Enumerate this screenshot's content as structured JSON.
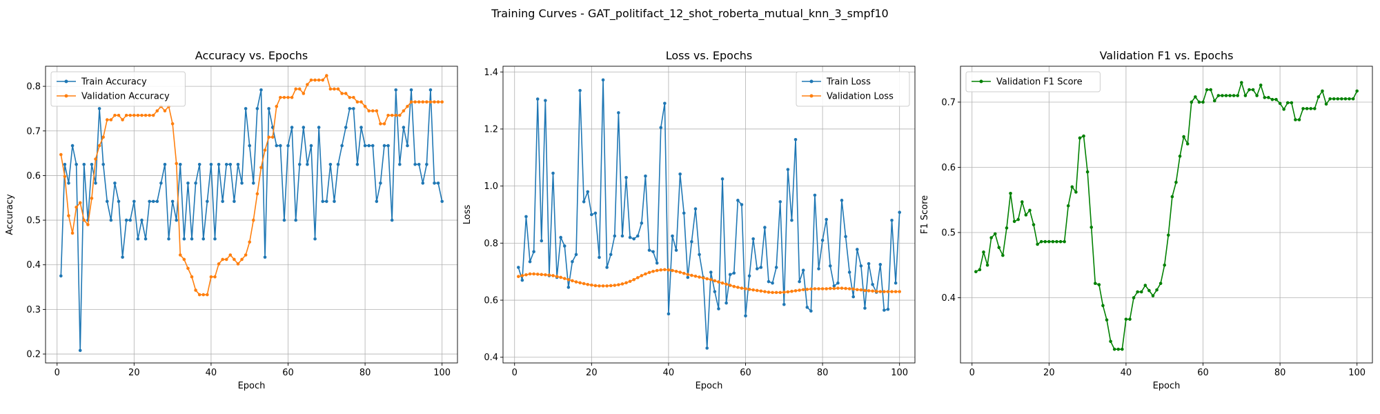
{
  "figure": {
    "title": "Training Curves - GAT_politifact_12_shot_roberta_mutual_knn_3_smpf10"
  },
  "chart_data": [
    {
      "type": "line",
      "title": "Accuracy vs. Epochs",
      "xlabel": "Epoch",
      "ylabel": "Accuracy",
      "xlim": [
        -3,
        104
      ],
      "ylim": [
        0.18,
        0.845
      ],
      "xticks": [
        0,
        20,
        40,
        60,
        80,
        100
      ],
      "yticks": [
        0.2,
        0.3,
        0.4,
        0.5,
        0.6,
        0.7,
        0.8
      ],
      "ytick_labels": [
        "0.2",
        "0.3",
        "0.4",
        "0.5",
        "0.6",
        "0.7",
        "0.8"
      ],
      "grid": true,
      "legend": "upper left",
      "series": [
        {
          "name": "Train Accuracy",
          "color": "#1f77b4",
          "x_start": 1,
          "values": [
            0.375,
            0.625,
            0.583,
            0.667,
            0.625,
            0.208,
            0.625,
            0.5,
            0.625,
            0.583,
            0.75,
            0.625,
            0.542,
            0.5,
            0.583,
            0.542,
            0.417,
            0.5,
            0.5,
            0.542,
            0.458,
            0.5,
            0.458,
            0.542,
            0.542,
            0.542,
            0.583,
            0.625,
            0.458,
            0.542,
            0.5,
            0.625,
            0.458,
            0.583,
            0.458,
            0.583,
            0.625,
            0.458,
            0.542,
            0.625,
            0.458,
            0.625,
            0.542,
            0.625,
            0.625,
            0.542,
            0.625,
            0.583,
            0.75,
            0.667,
            0.583,
            0.75,
            0.792,
            0.417,
            0.75,
            0.708,
            0.667,
            0.667,
            0.5,
            0.667,
            0.708,
            0.5,
            0.625,
            0.708,
            0.625,
            0.667,
            0.458,
            0.708,
            0.542,
            0.542,
            0.625,
            0.542,
            0.625,
            0.667,
            0.708,
            0.75,
            0.75,
            0.625,
            0.708,
            0.667,
            0.667,
            0.667,
            0.542,
            0.583,
            0.667,
            0.667,
            0.5,
            0.792,
            0.625,
            0.708,
            0.667,
            0.792,
            0.625,
            0.625,
            0.583,
            0.625,
            0.792,
            0.583,
            0.583,
            0.542
          ]
        },
        {
          "name": "Validation Accuracy",
          "color": "#ff7f0e",
          "x_start": 1,
          "values": [
            0.647,
            0.598,
            0.51,
            0.471,
            0.529,
            0.539,
            0.5,
            0.49,
            0.549,
            0.637,
            0.667,
            0.686,
            0.725,
            0.725,
            0.735,
            0.735,
            0.725,
            0.735,
            0.735,
            0.735,
            0.735,
            0.735,
            0.735,
            0.735,
            0.735,
            0.745,
            0.755,
            0.745,
            0.755,
            0.716,
            0.627,
            0.422,
            0.412,
            0.392,
            0.373,
            0.343,
            0.333,
            0.333,
            0.333,
            0.373,
            0.373,
            0.402,
            0.412,
            0.412,
            0.422,
            0.412,
            0.402,
            0.412,
            0.422,
            0.451,
            0.5,
            0.559,
            0.618,
            0.657,
            0.686,
            0.686,
            0.755,
            0.775,
            0.775,
            0.775,
            0.775,
            0.794,
            0.794,
            0.784,
            0.804,
            0.814,
            0.814,
            0.814,
            0.814,
            0.824,
            0.794,
            0.794,
            0.794,
            0.784,
            0.784,
            0.775,
            0.775,
            0.765,
            0.765,
            0.755,
            0.745,
            0.745,
            0.745,
            0.716,
            0.716,
            0.735,
            0.735,
            0.735,
            0.735,
            0.745,
            0.755,
            0.765,
            0.765,
            0.765,
            0.765,
            0.765,
            0.765,
            0.765,
            0.765,
            0.765
          ]
        }
      ]
    },
    {
      "type": "line",
      "title": "Loss vs. Epochs",
      "xlabel": "Epoch",
      "ylabel": "Loss",
      "xlim": [
        -3,
        104
      ],
      "ylim": [
        0.38,
        1.42
      ],
      "xticks": [
        0,
        20,
        40,
        60,
        80,
        100
      ],
      "yticks": [
        0.4,
        0.6,
        0.8,
        1.0,
        1.2,
        1.4
      ],
      "ytick_labels": [
        "0.4",
        "0.6",
        "0.8",
        "1.0",
        "1.2",
        "1.4"
      ],
      "grid": true,
      "legend": "upper right",
      "series": [
        {
          "name": "Train Loss",
          "color": "#1f77b4",
          "x_start": 1,
          "values": [
            0.715,
            0.67,
            0.893,
            0.735,
            0.77,
            1.305,
            0.808,
            1.3,
            0.686,
            1.045,
            0.68,
            0.82,
            0.79,
            0.645,
            0.735,
            0.76,
            1.335,
            0.945,
            0.98,
            0.9,
            0.905,
            0.75,
            1.372,
            0.715,
            0.76,
            0.825,
            1.257,
            0.825,
            1.03,
            0.82,
            0.815,
            0.825,
            0.87,
            1.035,
            0.775,
            0.77,
            0.73,
            1.205,
            1.29,
            0.552,
            0.825,
            0.775,
            1.042,
            0.905,
            0.68,
            0.805,
            0.92,
            0.76,
            0.68,
            0.432,
            0.698,
            0.63,
            0.57,
            1.025,
            0.59,
            0.69,
            0.695,
            0.95,
            0.935,
            0.545,
            0.685,
            0.815,
            0.71,
            0.715,
            0.855,
            0.665,
            0.66,
            0.715,
            0.945,
            0.585,
            1.058,
            0.88,
            1.163,
            0.665,
            0.705,
            0.575,
            0.562,
            0.968,
            0.71,
            0.81,
            0.883,
            0.72,
            0.65,
            0.66,
            0.95,
            0.823,
            0.698,
            0.612,
            0.778,
            0.72,
            0.572,
            0.728,
            0.655,
            0.628,
            0.725,
            0.565,
            0.568,
            0.88,
            0.66,
            0.908
          ]
        },
        {
          "name": "Validation Loss",
          "color": "#ff7f0e",
          "x_start": 1,
          "values": [
            0.683,
            0.686,
            0.689,
            0.692,
            0.692,
            0.691,
            0.69,
            0.689,
            0.688,
            0.686,
            0.683,
            0.68,
            0.676,
            0.672,
            0.668,
            0.664,
            0.661,
            0.658,
            0.655,
            0.653,
            0.651,
            0.65,
            0.65,
            0.65,
            0.651,
            0.652,
            0.654,
            0.657,
            0.661,
            0.666,
            0.672,
            0.679,
            0.686,
            0.692,
            0.697,
            0.701,
            0.704,
            0.706,
            0.707,
            0.706,
            0.704,
            0.701,
            0.698,
            0.694,
            0.69,
            0.687,
            0.684,
            0.681,
            0.678,
            0.675,
            0.672,
            0.668,
            0.664,
            0.66,
            0.656,
            0.652,
            0.648,
            0.645,
            0.642,
            0.64,
            0.638,
            0.636,
            0.634,
            0.632,
            0.63,
            0.628,
            0.627,
            0.627,
            0.627,
            0.628,
            0.629,
            0.631,
            0.633,
            0.635,
            0.637,
            0.638,
            0.639,
            0.64,
            0.64,
            0.64,
            0.64,
            0.641,
            0.641,
            0.642,
            0.642,
            0.641,
            0.64,
            0.639,
            0.637,
            0.636,
            0.634,
            0.633,
            0.632,
            0.631,
            0.63,
            0.63,
            0.63,
            0.63,
            0.63,
            0.63
          ]
        }
      ]
    },
    {
      "type": "line",
      "title": "Validation F1 vs. Epochs",
      "xlabel": "Epoch",
      "ylabel": "F1 Score",
      "xlim": [
        -3,
        104
      ],
      "ylim": [
        0.3,
        0.755
      ],
      "xticks": [
        0,
        20,
        40,
        60,
        80,
        100
      ],
      "yticks": [
        0.4,
        0.5,
        0.6,
        0.7
      ],
      "ytick_labels": [
        "0.4",
        "0.5",
        "0.6",
        "0.7"
      ],
      "grid": true,
      "legend": "upper left",
      "series": [
        {
          "name": "Validation F1 Score",
          "color": "#008000",
          "x_start": 1,
          "values": [
            0.44,
            0.443,
            0.47,
            0.45,
            0.492,
            0.498,
            0.477,
            0.465,
            0.507,
            0.56,
            0.517,
            0.52,
            0.547,
            0.527,
            0.534,
            0.512,
            0.482,
            0.486,
            0.486,
            0.486,
            0.486,
            0.486,
            0.486,
            0.486,
            0.541,
            0.57,
            0.562,
            0.645,
            0.648,
            0.593,
            0.508,
            0.422,
            0.42,
            0.388,
            0.366,
            0.333,
            0.321,
            0.321,
            0.321,
            0.367,
            0.367,
            0.4,
            0.409,
            0.409,
            0.419,
            0.411,
            0.403,
            0.412,
            0.422,
            0.45,
            0.496,
            0.555,
            0.577,
            0.617,
            0.647,
            0.636,
            0.7,
            0.708,
            0.7,
            0.7,
            0.719,
            0.719,
            0.702,
            0.71,
            0.71,
            0.71,
            0.71,
            0.71,
            0.71,
            0.73,
            0.71,
            0.719,
            0.719,
            0.71,
            0.726,
            0.707,
            0.707,
            0.704,
            0.704,
            0.698,
            0.689,
            0.699,
            0.699,
            0.673,
            0.673,
            0.69,
            0.69,
            0.69,
            0.69,
            0.708,
            0.717,
            0.697,
            0.705,
            0.705,
            0.705,
            0.705,
            0.705,
            0.705,
            0.705,
            0.717
          ]
        }
      ]
    }
  ]
}
